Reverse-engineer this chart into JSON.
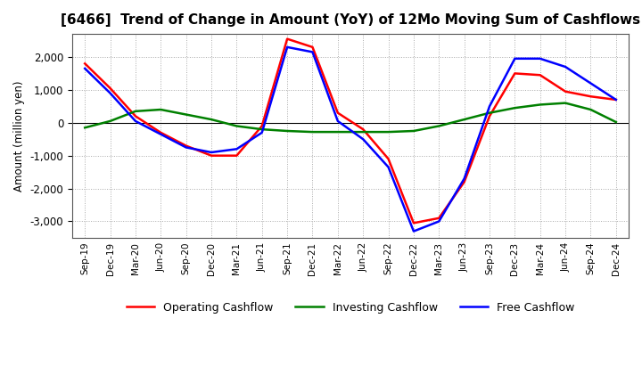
{
  "title": "[6466]  Trend of Change in Amount (YoY) of 12Mo Moving Sum of Cashflows",
  "ylabel": "Amount (million yen)",
  "ylim": [
    -3500,
    2700
  ],
  "yticks": [
    -3000,
    -2000,
    -1000,
    0,
    1000,
    2000
  ],
  "background_color": "#ffffff",
  "plot_bg_color": "#ffffff",
  "grid_color": "#aaaaaa",
  "x_labels": [
    "Sep-19",
    "Dec-19",
    "Mar-20",
    "Jun-20",
    "Sep-20",
    "Dec-20",
    "Mar-21",
    "Jun-21",
    "Sep-21",
    "Dec-21",
    "Mar-22",
    "Jun-22",
    "Sep-22",
    "Dec-22",
    "Mar-23",
    "Jun-23",
    "Sep-23",
    "Dec-23",
    "Mar-24",
    "Jun-24",
    "Sep-24",
    "Dec-24"
  ],
  "operating_cashflow": [
    1800,
    1050,
    200,
    -300,
    -700,
    -1000,
    -1000,
    -100,
    2550,
    2300,
    300,
    -200,
    -1100,
    -3050,
    -2900,
    -1800,
    200,
    1500,
    1450,
    950,
    800,
    700
  ],
  "investing_cashflow": [
    -150,
    50,
    350,
    400,
    250,
    100,
    -100,
    -200,
    -250,
    -280,
    -280,
    -280,
    -280,
    -250,
    -100,
    100,
    300,
    450,
    550,
    600,
    400,
    20
  ],
  "free_cashflow": [
    1650,
    900,
    50,
    -350,
    -750,
    -900,
    -800,
    -300,
    2300,
    2150,
    50,
    -500,
    -1350,
    -3300,
    -3000,
    -1700,
    500,
    1950,
    1950,
    1700,
    1200,
    700
  ],
  "operating_color": "#ff0000",
  "investing_color": "#008000",
  "free_color": "#0000ff",
  "line_width": 1.8
}
